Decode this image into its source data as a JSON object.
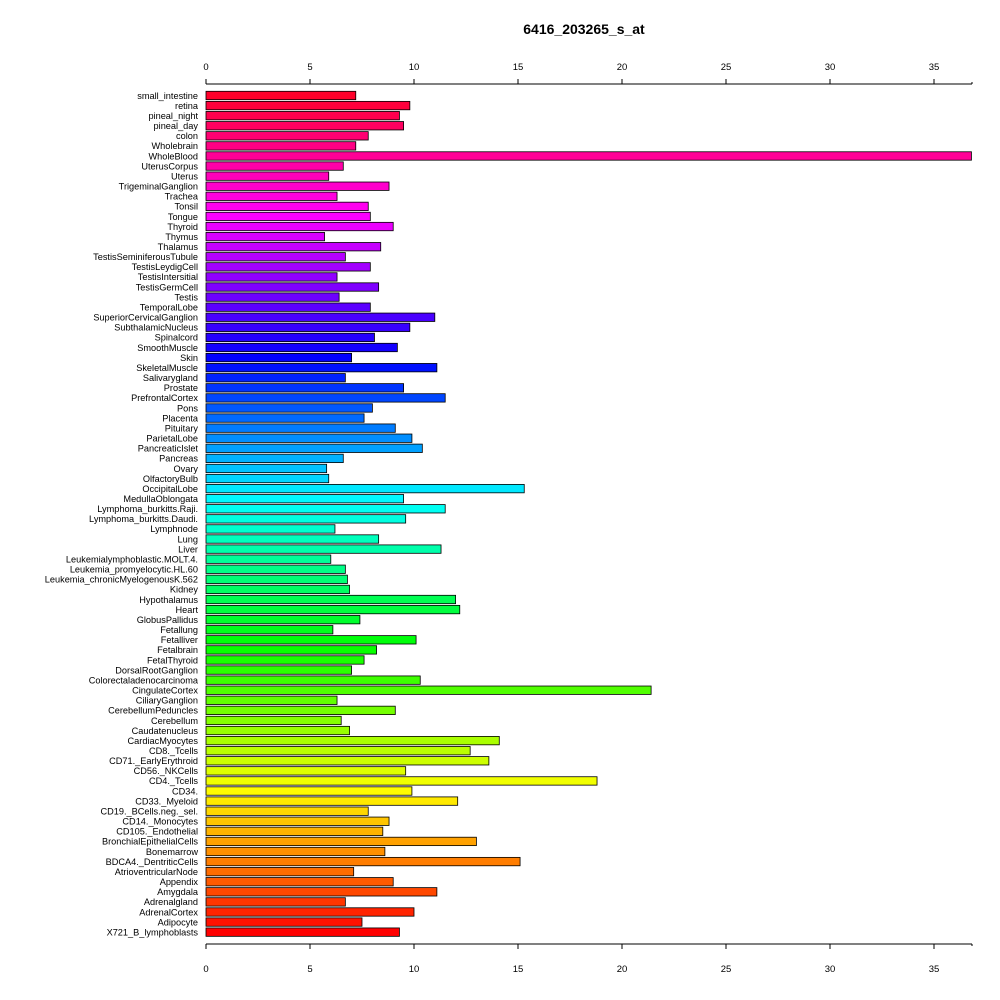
{
  "chart_data": {
    "type": "bar",
    "orientation": "horizontal",
    "title": "6416_203265_s_at",
    "xlabel": "",
    "ylabel": "",
    "xlim": [
      0,
      37
    ],
    "x_ticks": [
      0,
      5,
      10,
      15,
      20,
      25,
      30,
      35
    ],
    "x_axis_position": "top and bottom",
    "grid": false,
    "legend": "none",
    "color_scheme": "rainbow (red to magenta to blue to cyan to green to yellow to orange to red)",
    "categories": [
      "small_intestine",
      "retina",
      "pineal_night",
      "pineal_day",
      "colon",
      "Wholebrain",
      "WholeBlood",
      "UterusCorpus",
      "Uterus",
      "TrigeminalGanglion",
      "Trachea",
      "Tonsil",
      "Tongue",
      "Thyroid",
      "Thymus",
      "Thalamus",
      "TestisSeminiferousTubule",
      "TestisLeydigCell",
      "TestisIntersitial",
      "TestisGermCell",
      "Testis",
      "TemporalLobe",
      "SuperiorCervicalGanglion",
      "SubthalamicNucleus",
      "Spinalcord",
      "SmoothMuscle",
      "Skin",
      "SkeletalMuscle",
      "Salivarygland",
      "Prostate",
      "PrefrontalCortex",
      "Pons",
      "Placenta",
      "Pituitary",
      "ParietalLobe",
      "PancreaticIslet",
      "Pancreas",
      "Ovary",
      "OlfactoryBulb",
      "OccipitalLobe",
      "MedullaOblongata",
      "Lymphoma_burkitts.Raji.",
      "Lymphoma_burkitts.Daudi.",
      "Lymphnode",
      "Lung",
      "Liver",
      "Leukemialymphoblastic.MOLT.4.",
      "Leukemia_promyelocytic.HL.60",
      "Leukemia_chronicMyelogenousK.562",
      "Kidney",
      "Hypothalamus",
      "Heart",
      "GlobusPallidus",
      "Fetallung",
      "Fetalliver",
      "Fetalbrain",
      "FetalThyroid",
      "DorsalRootGanglion",
      "Colorectaladenocarcinoma",
      "CingulateCortex",
      "CiliaryGanglion",
      "CerebellumPeduncles",
      "Cerebellum",
      "Caudatenucleus",
      "CardiacMyocytes",
      "CD8._Tcells",
      "CD71._EarlyErythroid",
      "CD56._NKCells",
      "CD4._Tcells",
      "CD34.",
      "CD33._Myeloid",
      "CD19._BCells.neg._sel.",
      "CD14._Monocytes",
      "CD105._Endothelial",
      "BronchialEpithelialCells",
      "Bonemarrow",
      "BDCA4._DentriticCells",
      "AtrioventricularNode",
      "Appendix",
      "Amygdala",
      "Adrenalgland",
      "AdrenalCortex",
      "Adipocyte",
      "X721_B_lymphoblasts"
    ],
    "values": [
      7.2,
      9.8,
      9.3,
      9.5,
      7.8,
      7.2,
      36.8,
      6.6,
      5.9,
      8.8,
      6.3,
      7.8,
      7.9,
      9.0,
      5.7,
      8.4,
      6.7,
      7.9,
      6.3,
      8.3,
      6.4,
      7.9,
      11.0,
      9.8,
      8.1,
      9.2,
      7.0,
      11.1,
      6.7,
      9.5,
      11.5,
      8.0,
      7.6,
      9.1,
      9.9,
      10.4,
      6.6,
      5.8,
      5.9,
      15.3,
      9.5,
      11.5,
      9.6,
      6.2,
      8.3,
      11.3,
      6.0,
      6.7,
      6.8,
      6.9,
      12.0,
      12.2,
      7.4,
      6.1,
      10.1,
      8.2,
      7.6,
      7.0,
      10.3,
      21.4,
      6.3,
      9.1,
      6.5,
      6.9,
      14.1,
      12.7,
      13.6,
      9.6,
      18.8,
      9.9,
      12.1,
      7.8,
      8.8,
      8.5,
      13.0,
      8.6,
      15.1,
      7.1,
      9.0,
      11.1,
      6.7,
      10.0,
      7.5,
      9.3
    ]
  }
}
